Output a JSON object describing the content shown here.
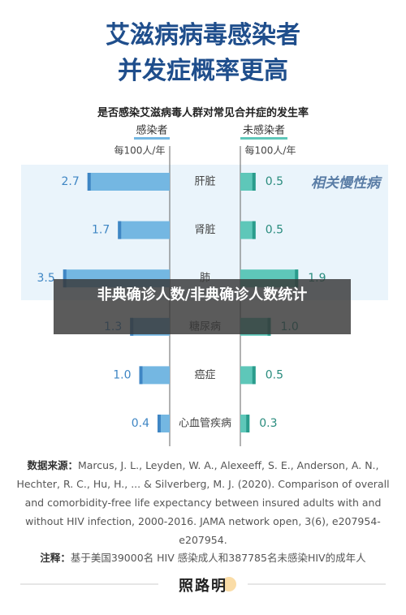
{
  "chart_data": {
    "type": "butterfly",
    "title_lines": [
      "艾滋病病毒感染者",
      "并发症概率更高"
    ],
    "subtitle": "是否感染艾滋病毒人群对常见合并症的发生率",
    "unit": "每100人/年",
    "annotation": "相关慢性病",
    "categories": [
      "肝脏",
      "肾脏",
      "肺",
      "糖尿病",
      "癌症",
      "心血管疾病"
    ],
    "series": [
      {
        "name": "感染者",
        "color": "#74b7e2",
        "edge": "#3f86c4",
        "values": [
          2.7,
          1.7,
          3.5,
          1.3,
          1.0,
          0.4
        ],
        "value_labels": [
          "2.7",
          "1.7",
          "3.5",
          "1.3",
          "1.0",
          "0.4"
        ]
      },
      {
        "name": "未感染者",
        "color": "#5ec7b9",
        "edge": "#2a9c8c",
        "values": [
          0.5,
          0.5,
          1.9,
          1.0,
          0.5,
          0.3
        ],
        "value_labels": [
          "0.5",
          "0.5",
          "1.9",
          "1.0",
          "0.5",
          "0.3"
        ]
      }
    ]
  },
  "source_label": "数据来源：",
  "source": "Marcus, J. L., Leyden, W. A., Alexeeff, S. E., Anderson, A. N., Hechter, R. C., Hu, H., ... & Silverberg, M. J. (2020). Comparison of overall and comorbidity-free life expectancy between insured adults with and without HIV infection, 2000-2016. JAMA network open, 3(6), e207954-e207954.",
  "note_label": "注释：",
  "note": "基于美国39000名 HIV 感染成人和387785名未感染HIV的成年人",
  "logo": "照路明",
  "watermark": "非典确诊人数/非典确诊人数统计"
}
